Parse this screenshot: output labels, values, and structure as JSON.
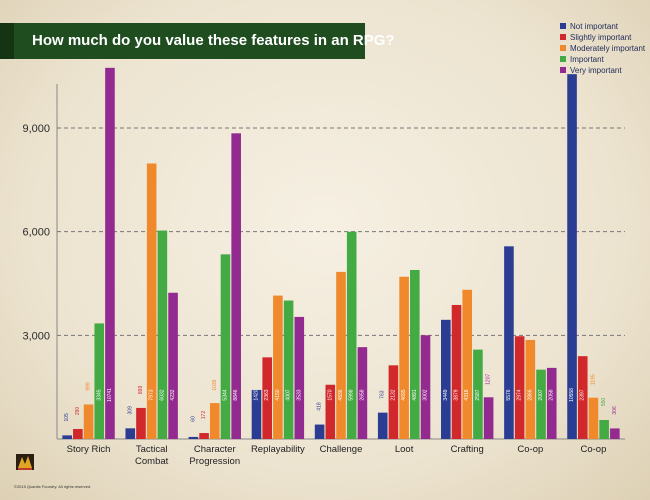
{
  "title": "How much do you value these features in an RPG?",
  "copyright": "©2015 Quantic Foundry. All rights reserved.",
  "colors": {
    "title_bg": "#1f4d20",
    "not_important": "#2b3d93",
    "slightly_important": "#d1282c",
    "moderately_important": "#f0892c",
    "important": "#44ab44",
    "very_important": "#932a90"
  },
  "chart_data": {
    "type": "bar",
    "title": "How much do you value these features in an RPG?",
    "xlabel": "",
    "ylabel": "",
    "ylim": [
      0,
      11000
    ],
    "yticks": [
      3000,
      6000,
      9000
    ],
    "ytick_labels": [
      "3,000",
      "6,000",
      "9,000"
    ],
    "grid": "dashed horizontal",
    "legend_position": "top-right",
    "categories": [
      "Story Rich",
      "Tactical Combat",
      "Character Progression",
      "Replayability",
      "Challenge",
      "Loot",
      "Crafting",
      "Co-op",
      "Co-op"
    ],
    "category_lines": [
      [
        "Story Rich"
      ],
      [
        "Tactical",
        "Combat"
      ],
      [
        "Character",
        "Progression"
      ],
      [
        "Replayability"
      ],
      [
        "Challenge"
      ],
      [
        "Loot"
      ],
      [
        "Crafting"
      ],
      [
        "Co-op"
      ],
      [
        "Co-op"
      ]
    ],
    "series": [
      {
        "name": "Not important",
        "values": [
          105,
          309,
          60,
          1420,
          418,
          763,
          3449,
          5576,
          10558
        ],
        "labels": [
          "105",
          "309",
          "60",
          "1420",
          "418",
          "763",
          "3449",
          "5576",
          "10558"
        ]
      },
      {
        "name": "Slightly important",
        "values": [
          290,
          899,
          172,
          2363,
          1570,
          2132,
          3879,
          2974,
          2397
        ],
        "labels": [
          "290",
          "899",
          "172",
          "2363",
          "1570",
          "2132",
          "3879",
          "2974",
          "2397"
        ]
      },
      {
        "name": "Moderately important",
        "values": [
          999,
          7973,
          1039,
          4150,
          4836,
          4695,
          4318,
          2866,
          1195
        ],
        "labels": [
          "999",
          "7973",
          "1039",
          "4150",
          "4836",
          "4695",
          "4318",
          "2866",
          "1195"
        ]
      },
      {
        "name": "Important",
        "values": [
          3345,
          6032,
          5344,
          4007,
          5998,
          4891,
          2587,
          2007,
          550
        ],
        "labels": [
          "3345",
          "6032",
          "5344",
          "4007",
          "5998",
          "4891",
          "2587",
          "2007",
          "550"
        ]
      },
      {
        "name": "Very important",
        "values": [
          10741,
          4232,
          8846,
          3533,
          2658,
          3002,
          1207,
          2058,
          306
        ],
        "labels": [
          "10741",
          "4232",
          "8846",
          "3533",
          "2658",
          "3002",
          "1207",
          "2058",
          "306"
        ]
      }
    ]
  }
}
